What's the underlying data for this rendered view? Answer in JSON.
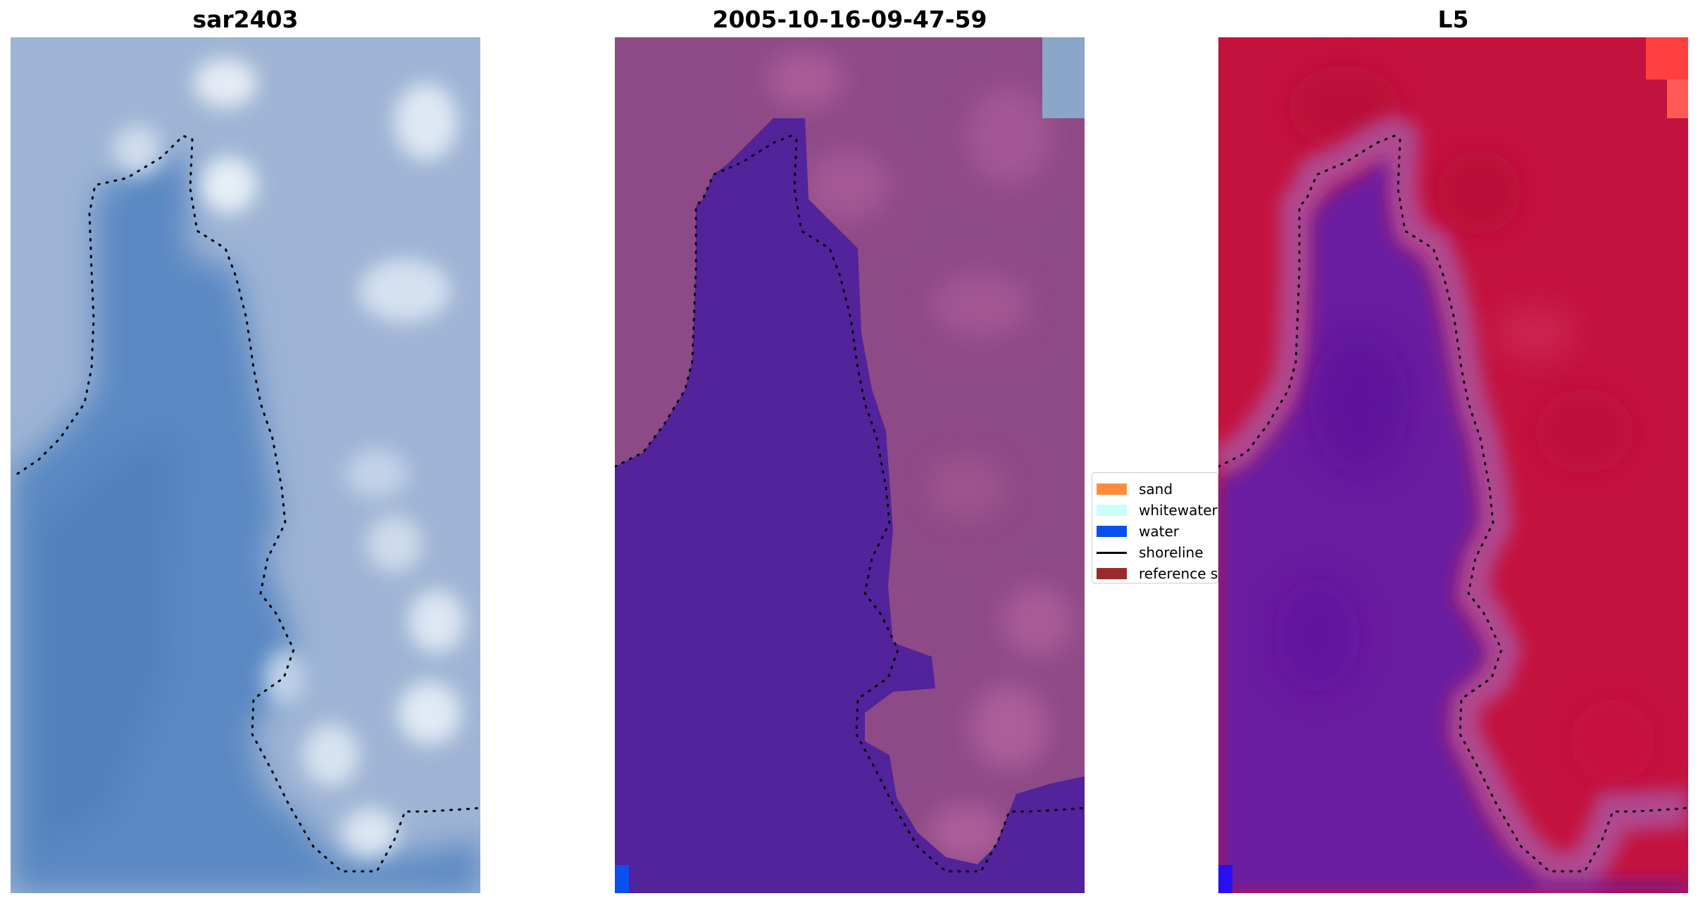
{
  "panels": [
    {
      "id": "rgb",
      "title": "sar2403"
    },
    {
      "id": "classified",
      "title": "2005-10-16-09-47-59"
    },
    {
      "id": "index",
      "title": "L5"
    }
  ],
  "legend": {
    "items": [
      {
        "label": "sand",
        "color": "#ff8c3a",
        "kind": "patch"
      },
      {
        "label": "whitewater",
        "color": "#c8fff8",
        "kind": "patch"
      },
      {
        "label": "water",
        "color": "#0a50f0",
        "kind": "patch"
      },
      {
        "label": "shoreline",
        "color": "#000000",
        "kind": "line"
      },
      {
        "label": "reference shoreline",
        "color": "#9b2a2a",
        "kind": "patch"
      }
    ]
  },
  "colors": {
    "rgb_water": "#5a88c2",
    "rgb_land": "#9eb4d4",
    "rgb_bright": "#eef2f8",
    "class_land": "#8e4a86",
    "class_water": "#52239a",
    "index_land": "#c4123e",
    "index_water": "#6a1aa0",
    "index_edge": "#b04a90",
    "corner_blue": "#0a50f0",
    "corner_red": "#ff4040"
  }
}
